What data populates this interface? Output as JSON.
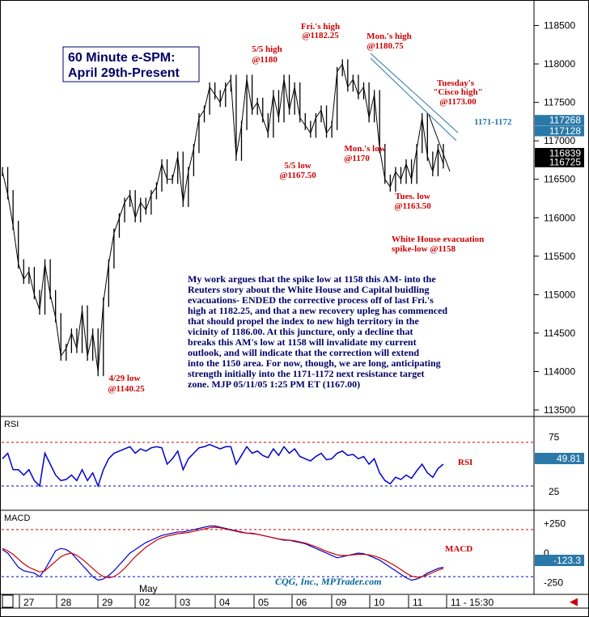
{
  "chart_data": [
    {
      "type": "line",
      "title": "60 Minute e-SPM:",
      "subtitle": "April 29th-Present",
      "ylim": [
        113500,
        118600
      ],
      "yticks": [
        113500,
        114000,
        114500,
        115000,
        115500,
        116000,
        116500,
        117000,
        117500,
        118000,
        118500
      ],
      "ytick_labels": [
        "113500",
        "114000",
        "114500",
        "115000",
        "115500",
        "116000",
        "116500",
        "117000",
        "117500",
        "118000",
        "118500"
      ],
      "price_tags": [
        {
          "label": "117268",
          "value": 117268,
          "color": "#2a78a8"
        },
        {
          "label": "117128",
          "value": 117128,
          "color": "#2a78a8"
        },
        {
          "label": "116839",
          "value": 116839,
          "color": "#000000"
        },
        {
          "label": "116725",
          "value": 116725,
          "color": "#000000"
        }
      ],
      "series": [
        {
          "values": [
            116600,
            116300,
            115900,
            115400,
            115200,
            115300,
            115000,
            114800,
            115400,
            115000,
            114700,
            114200,
            114300,
            114500,
            114300,
            114800,
            114200,
            114500,
            114000,
            114900,
            115400,
            115800,
            116000,
            116200,
            116300,
            116000,
            116200,
            116100,
            116300,
            116400,
            116700,
            116500,
            116500,
            116800,
            116200,
            116600,
            116900,
            117300,
            117400,
            117700,
            117600,
            117500,
            117700,
            117800,
            116800,
            117200,
            117800,
            117400,
            117500,
            117300,
            117100,
            117600,
            117300,
            117800,
            117400,
            117700,
            117300,
            117200,
            117100,
            117300,
            117400,
            117100,
            117200,
            117900,
            118000,
            117700,
            117800,
            117600,
            117700,
            117300,
            117600,
            116900,
            116500,
            116400,
            116600,
            116500,
            116700,
            116500,
            116900,
            117300,
            116800,
            116600,
            116900,
            116700
          ]
        }
      ],
      "annotations": [
        {
          "lines": [
            "Fri.'s high",
            "@1182.25"
          ]
        },
        {
          "lines": [
            "5/5 high",
            "@1180"
          ]
        },
        {
          "lines": [
            "Mon.'s high",
            "@1180.75"
          ]
        },
        {
          "lines": [
            "Tuesday's",
            "\"Cisco high\"",
            "@1173.00"
          ]
        },
        {
          "lines": [
            "1171-1172"
          ]
        },
        {
          "lines": [
            "5/5 low",
            "@1167.50"
          ]
        },
        {
          "lines": [
            "Mon.'s low",
            "@1170"
          ]
        },
        {
          "lines": [
            "Tues. low",
            "@1163.50"
          ]
        },
        {
          "lines": [
            "White House evacuation",
            "spike-low @1158"
          ]
        },
        {
          "lines": [
            "4/29 low",
            "@1140.25"
          ]
        }
      ]
    },
    {
      "type": "line",
      "title": "RSI",
      "yticks": [
        25,
        75
      ],
      "ytick_labels": [
        "25",
        "75"
      ],
      "ylim": [
        10,
        90
      ],
      "reference_lines": [
        30,
        70
      ],
      "last_value_label": "49.81",
      "series": [
        {
          "name": "RSI",
          "values": [
            55,
            60,
            45,
            45,
            40,
            45,
            35,
            30,
            60,
            50,
            40,
            35,
            36,
            40,
            35,
            45,
            35,
            42,
            30,
            45,
            55,
            60,
            62,
            64,
            66,
            60,
            64,
            62,
            65,
            66,
            65,
            50,
            55,
            62,
            45,
            55,
            60,
            65,
            66,
            68,
            66,
            64,
            66,
            66,
            50,
            58,
            66,
            60,
            62,
            58,
            56,
            64,
            58,
            66,
            60,
            64,
            57,
            55,
            53,
            57,
            60,
            54,
            55,
            60,
            62,
            58,
            59,
            55,
            57,
            50,
            55,
            42,
            35,
            32,
            38,
            36,
            40,
            37,
            44,
            50,
            42,
            38,
            46,
            50
          ]
        }
      ]
    },
    {
      "type": "line",
      "title": "MACD",
      "yticks": [
        250,
        0,
        -250
      ],
      "ytick_labels": [
        "+250",
        "0",
        "-250"
      ],
      "ylim": [
        -330,
        330
      ],
      "reference_lines": [
        200,
        -200
      ],
      "last_value_label": "-123.3",
      "series": [
        {
          "name": "MACD",
          "values": [
            30,
            0,
            -60,
            -120,
            -150,
            -160,
            -170,
            -200,
            -140,
            -60,
            20,
            40,
            30,
            0,
            -50,
            -100,
            -150,
            -200,
            -230,
            -220,
            -190,
            -150,
            -100,
            -50,
            0,
            30,
            60,
            90,
            110,
            130,
            150,
            160,
            170,
            180,
            180,
            190,
            200,
            210,
            220,
            230,
            230,
            220,
            210,
            200,
            190,
            180,
            170,
            170,
            160,
            150,
            140,
            130,
            120,
            110,
            110,
            100,
            90,
            80,
            60,
            40,
            20,
            0,
            -20,
            -40,
            -30,
            -20,
            -10,
            0,
            -5,
            -20,
            -40,
            -60,
            -90,
            -120,
            -150,
            -180,
            -210,
            -230,
            -220,
            -200,
            -170,
            -150,
            -130,
            -120
          ]
        },
        {
          "name": "Signal",
          "values": [
            40,
            20,
            -10,
            -50,
            -90,
            -120,
            -140,
            -160,
            -150,
            -110,
            -70,
            -30,
            -10,
            0,
            -20,
            -50,
            -90,
            -130,
            -170,
            -200,
            -210,
            -200,
            -170,
            -130,
            -80,
            -30,
            10,
            50,
            80,
            110,
            130,
            145,
            155,
            165,
            170,
            175,
            185,
            195,
            205,
            215,
            220,
            215,
            205,
            195,
            185,
            175,
            170,
            165,
            160,
            150,
            140,
            130,
            120,
            115,
            110,
            105,
            95,
            85,
            70,
            55,
            35,
            15,
            0,
            -15,
            -20,
            -20,
            -15,
            -10,
            -10,
            -15,
            -25,
            -40,
            -60,
            -85,
            -110,
            -140,
            -170,
            -195,
            -205,
            -200,
            -185,
            -165,
            -145,
            -130
          ]
        }
      ]
    }
  ],
  "x_axis": {
    "month_label": "May",
    "day_labels": [
      "27",
      "28",
      "29",
      "02",
      "03",
      "04",
      "05",
      "06",
      "09",
      "10",
      "11",
      "11 - 15:30"
    ]
  },
  "commentary": [
    "My work argues that the spike low at 1158 this AM- into the",
    "Reuters story about the White House and Capital buidling",
    "evacuations- ENDED the corrective process off of last Fri.'s",
    "high at 1182.25, and that a new recovery upleg has commenced",
    "that should propel the index to new high territory in the",
    "vicinity of 1186.00. At this juncture, only a decline that",
    "breaks this AM's low at 1158 will invalidate my current",
    "outlook, and will indicate that the correction will extend",
    "into the 1150 area. For now, though, we are long, anticipating",
    "strength initially into the 1171-1172 next resistance target",
    "zone.  MJP  05/11/05 1:25 PM ET  (1167.00)"
  ],
  "source": "CQG, Inc., MPTrader.com",
  "colors": {
    "price": "#000000",
    "rsi": "#0000cc",
    "macd": "#0000cc",
    "signal": "#cc0000",
    "annotation": "#cc0000",
    "trendline": "#2a78a8",
    "commentary": "#000066",
    "dashed_ref": "#cc0000",
    "dashed_ref_blue": "#0000cc"
  }
}
